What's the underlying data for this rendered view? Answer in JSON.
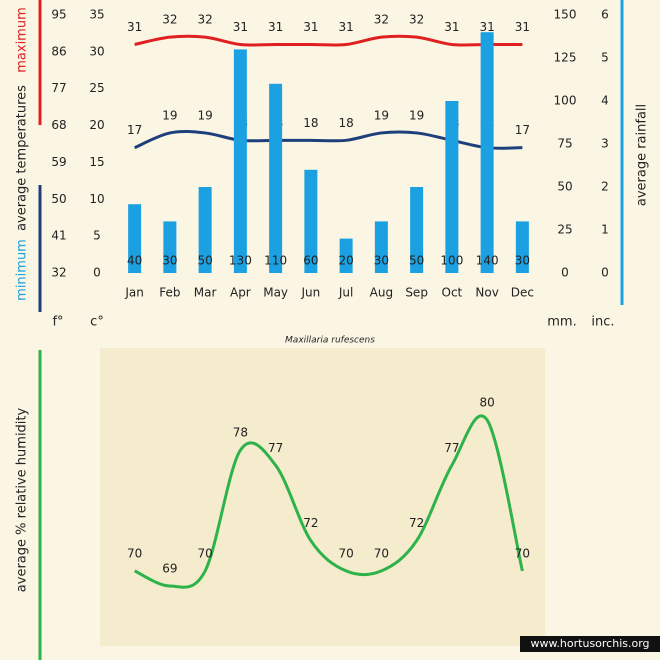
{
  "chart_data": [
    {
      "type": "combo",
      "title": "Maxillaria rufescens",
      "categories": [
        "Jan",
        "Feb",
        "Mar",
        "Apr",
        "May",
        "Jun",
        "Jul",
        "Aug",
        "Sep",
        "Oct",
        "Nov",
        "Dec"
      ],
      "series": [
        {
          "name": "maximum",
          "color": "#e02020",
          "values": [
            31,
            32,
            32,
            31,
            31,
            31,
            31,
            32,
            32,
            31,
            31,
            31
          ]
        },
        {
          "name": "minimum",
          "color": "#1f3f7a",
          "values": [
            17,
            19,
            19,
            18,
            18,
            18,
            18,
            19,
            19,
            18,
            17,
            17
          ]
        },
        {
          "name": "average rainfall",
          "color": "#1ba1e2",
          "axis": "y2",
          "values": [
            40,
            30,
            50,
            130,
            110,
            60,
            20,
            30,
            50,
            100,
            140,
            30
          ]
        }
      ],
      "ylabel": "average temperatures",
      "ylim": [
        0,
        35
      ],
      "yticks": [
        0,
        5,
        10,
        15,
        20,
        25,
        30,
        35
      ],
      "yunit": "c°",
      "yflim": [
        32,
        95
      ],
      "yfticks": [
        32,
        41,
        50,
        59,
        68,
        77,
        86,
        95
      ],
      "yfunit": "f°",
      "y2lim": [
        0,
        150
      ],
      "y2ticks": [
        0,
        25,
        50,
        75,
        100,
        125,
        150
      ],
      "y2unit": "mm.",
      "y3lim": [
        0,
        6
      ],
      "y3ticks": [
        0,
        1,
        2,
        3,
        4,
        5,
        6
      ],
      "y3unit": "inc."
    },
    {
      "type": "line",
      "ylabel": "average % relative humidity",
      "color": "#2db34a",
      "values": [
        70,
        69,
        70,
        78,
        77,
        72,
        70,
        70,
        72,
        77,
        80,
        70
      ]
    }
  ],
  "watermark": "www.hortusorchis.org"
}
